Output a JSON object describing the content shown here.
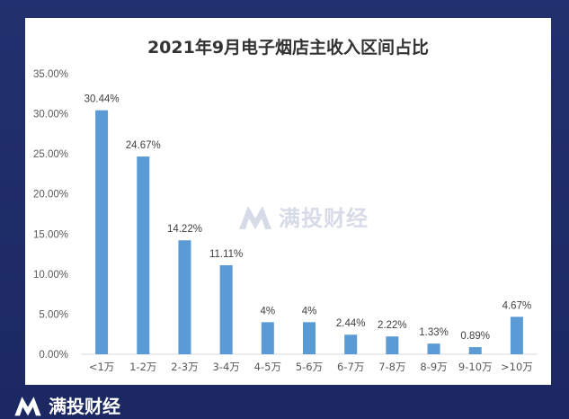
{
  "brand": {
    "name": "满投财经",
    "logo_icon": "mt-logo-icon"
  },
  "colors": {
    "bar": "#5b9bd5",
    "background": "#1c2a66",
    "axis_text": "#595959",
    "label_text": "#404040",
    "grid": "#d9d9d9"
  },
  "chart_data": {
    "type": "bar",
    "title": "2021年9月电子烟店主收入区间占比",
    "xlabel": "",
    "ylabel": "",
    "ylim": [
      0,
      35
    ],
    "yticks": [
      "0.00%",
      "5.00%",
      "10.00%",
      "15.00%",
      "20.00%",
      "25.00%",
      "30.00%",
      "35.00%"
    ],
    "grid": false,
    "categories": [
      "<1万",
      "1-2万",
      "2-3万",
      "3-4万",
      "4-5万",
      "5-6万",
      "6-7万",
      "7-8万",
      "8-9万",
      "9-10万",
      ">10万"
    ],
    "values": [
      30.44,
      24.67,
      14.22,
      11.11,
      4,
      4,
      2.44,
      2.22,
      1.33,
      0.89,
      4.67
    ],
    "data_labels": [
      "30.44%",
      "24.67%",
      "14.22%",
      "11.11%",
      "4%",
      "4%",
      "2.44%",
      "2.22%",
      "1.33%",
      "0.89%",
      "4.67%"
    ]
  }
}
